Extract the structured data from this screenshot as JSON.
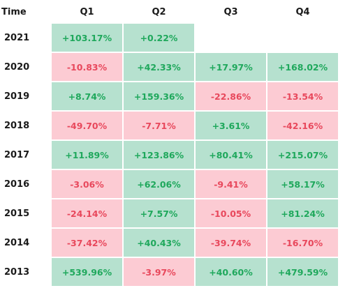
{
  "header": {
    "time_label": "Time",
    "quarters": [
      "Q1",
      "Q2",
      "Q3",
      "Q4"
    ]
  },
  "rows": [
    {
      "year": "2021",
      "cells": [
        "+103.17%",
        "+0.22%",
        "",
        ""
      ]
    },
    {
      "year": "2020",
      "cells": [
        "-10.83%",
        "+42.33%",
        "+17.97%",
        "+168.02%"
      ]
    },
    {
      "year": "2019",
      "cells": [
        "+8.74%",
        "+159.36%",
        "-22.86%",
        "-13.54%"
      ]
    },
    {
      "year": "2018",
      "cells": [
        "-49.70%",
        "-7.71%",
        "+3.61%",
        "-42.16%"
      ]
    },
    {
      "year": "2017",
      "cells": [
        "+11.89%",
        "+123.86%",
        "+80.41%",
        "+215.07%"
      ]
    },
    {
      "year": "2016",
      "cells": [
        "-3.06%",
        "+62.06%",
        "-9.41%",
        "+58.17%"
      ]
    },
    {
      "year": "2015",
      "cells": [
        "-24.14%",
        "+7.57%",
        "-10.05%",
        "+81.24%"
      ]
    },
    {
      "year": "2014",
      "cells": [
        "-37.42%",
        "+40.43%",
        "-39.74%",
        "-16.70%"
      ]
    },
    {
      "year": "2013",
      "cells": [
        "+539.96%",
        "-3.97%",
        "+40.60%",
        "+479.59%"
      ]
    }
  ],
  "colors": {
    "positive_bg": "#b6e1cf",
    "positive_text": "#1fa85c",
    "negative_bg": "#fccbd3",
    "negative_text": "#e8485c"
  }
}
